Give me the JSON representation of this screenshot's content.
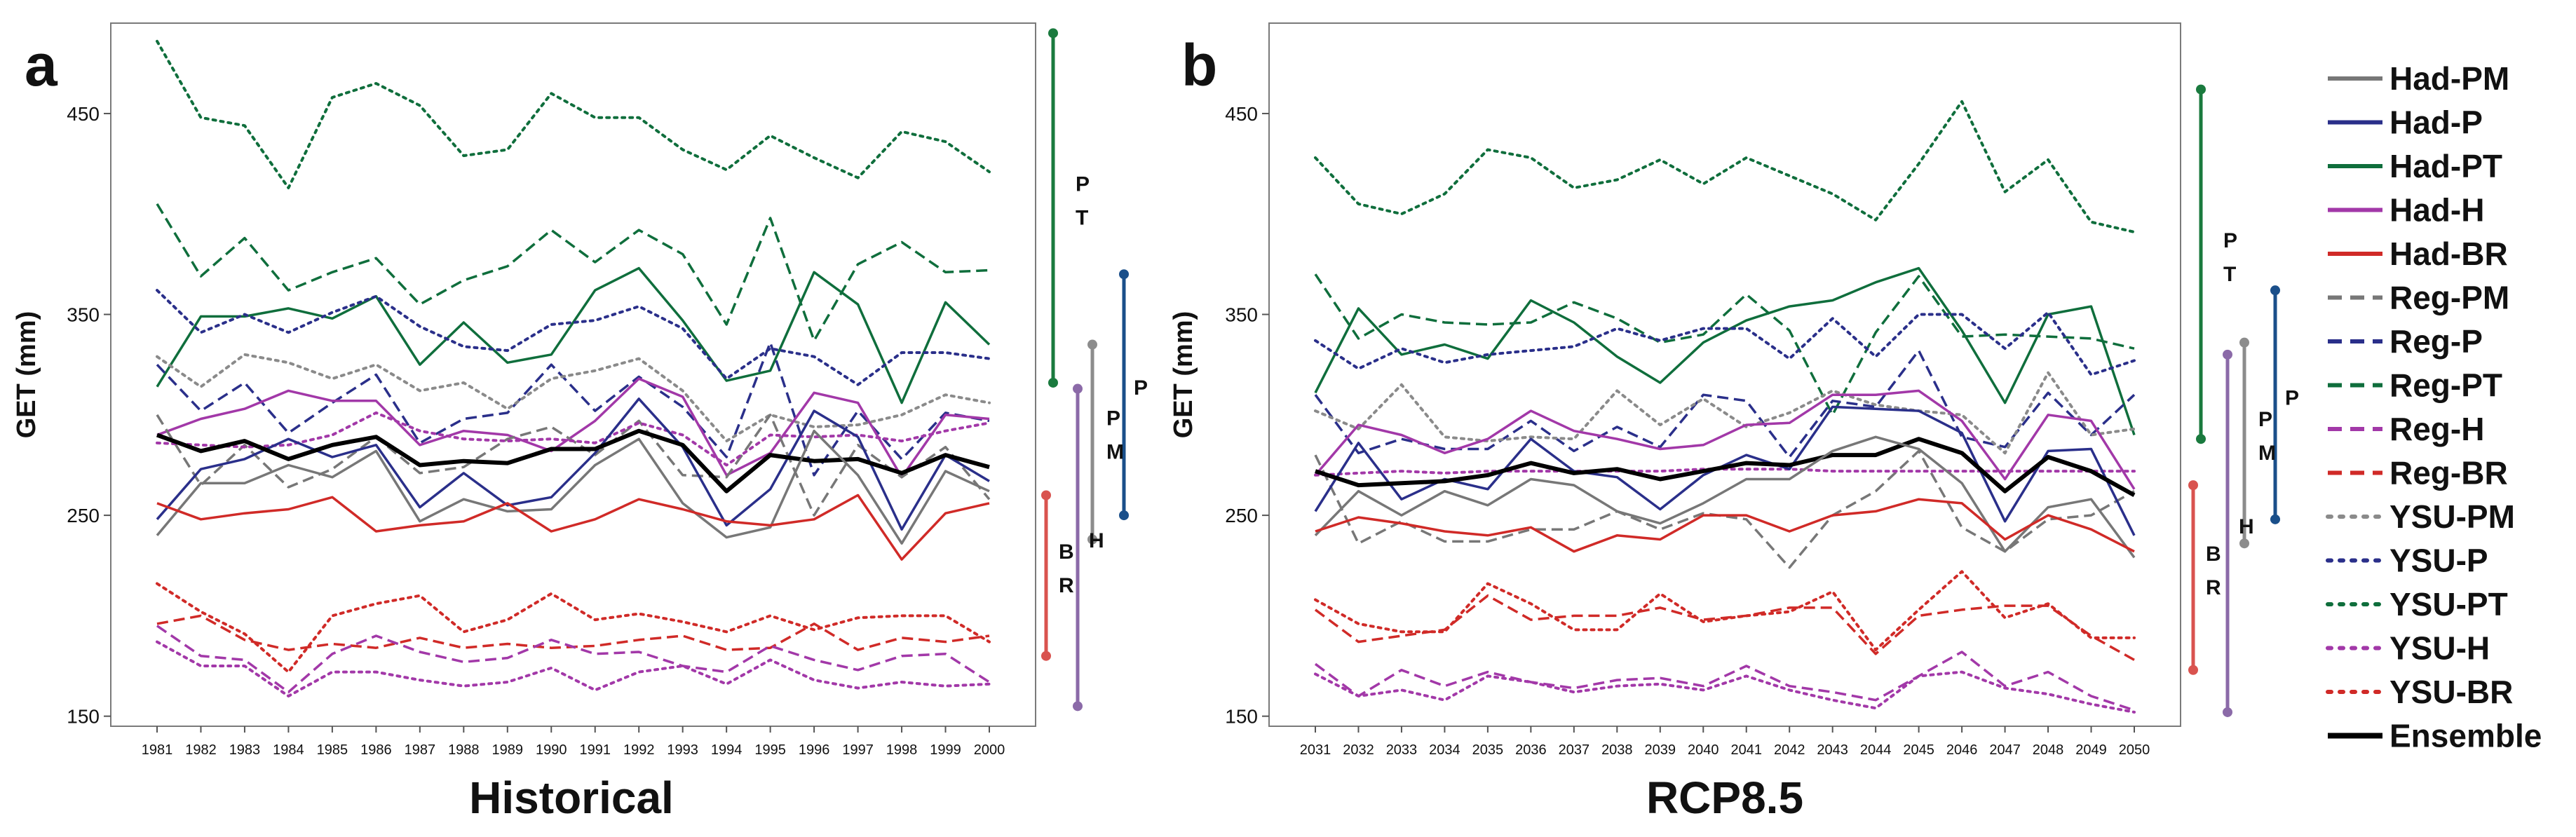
{
  "colors": {
    "Had-PM": "#777777",
    "Had-P": "#2a2f8a",
    "Had-PT": "#0f6e3c",
    "Had-H": "#a238a8",
    "Had-BR": "#d02a27",
    "Reg-PM": "#777777",
    "Reg-P": "#2a2f8a",
    "Reg-PT": "#0f6e3c",
    "Reg-H": "#a238a8",
    "Reg-BR": "#d02a27",
    "YSU-PM": "#8a8a8a",
    "YSU-P": "#2a2f8a",
    "YSU-PT": "#0f6e3c",
    "YSU-H": "#a238a8",
    "YSU-BR": "#d02a27",
    "Ensemble": "#000000",
    "bar_PT": "#1a7a3e",
    "bar_P": "#1a4f8a",
    "bar_PM": "#8c8c8c",
    "bar_H": "#8b6aa8",
    "bar_BR": "#d9534f"
  },
  "legend": {
    "entries": [
      {
        "name": "Had-PM",
        "style": "solid"
      },
      {
        "name": "Had-P",
        "style": "solid"
      },
      {
        "name": "Had-PT",
        "style": "solid"
      },
      {
        "name": "Had-H",
        "style": "solid"
      },
      {
        "name": "Had-BR",
        "style": "solid"
      },
      {
        "name": "Reg-PM",
        "style": "dashed"
      },
      {
        "name": "Reg-P",
        "style": "dashed"
      },
      {
        "name": "Reg-PT",
        "style": "dashed"
      },
      {
        "name": "Reg-H",
        "style": "dashed"
      },
      {
        "name": "Reg-BR",
        "style": "dashed"
      },
      {
        "name": "YSU-PM",
        "style": "dotted"
      },
      {
        "name": "YSU-P",
        "style": "dotted"
      },
      {
        "name": "YSU-PT",
        "style": "dotted"
      },
      {
        "name": "YSU-H",
        "style": "dotted"
      },
      {
        "name": "YSU-BR",
        "style": "dotted"
      },
      {
        "name": "Ensemble",
        "style": "solid-thick"
      }
    ]
  },
  "chart_data": [
    {
      "type": "line",
      "panel_label": "a",
      "title": "Historical",
      "xlabel": "",
      "ylabel": "GET (mm)",
      "ylim": [
        145,
        495
      ],
      "yticks": [
        150,
        250,
        350,
        450
      ],
      "categories": [
        "1981",
        "1982",
        "1983",
        "1984",
        "1985",
        "1986",
        "1987",
        "1988",
        "1989",
        "1990",
        "1991",
        "1992",
        "1993",
        "1994",
        "1995",
        "1996",
        "1997",
        "1998",
        "1999",
        "2000"
      ],
      "series": [
        {
          "name": "YSU-PT",
          "values": [
            486,
            448,
            444,
            413,
            458,
            465,
            454,
            429,
            432,
            460,
            448,
            448,
            432,
            422,
            439,
            428,
            418,
            441,
            436,
            421
          ]
        },
        {
          "name": "Reg-PT",
          "values": [
            405,
            369,
            388,
            362,
            371,
            378,
            355,
            367,
            374,
            392,
            376,
            392,
            380,
            345,
            398,
            337,
            375,
            386,
            371,
            372
          ]
        },
        {
          "name": "Had-PT",
          "values": [
            314,
            349,
            349,
            353,
            348,
            359,
            325,
            346,
            326,
            330,
            362,
            373,
            347,
            317,
            322,
            371,
            355,
            306,
            356,
            335
          ]
        },
        {
          "name": "YSU-P",
          "values": [
            362,
            341,
            350,
            341,
            351,
            359,
            344,
            334,
            332,
            345,
            347,
            354,
            343,
            318,
            333,
            329,
            315,
            331,
            331,
            328
          ]
        },
        {
          "name": "Reg-P",
          "values": [
            325,
            302,
            316,
            291,
            306,
            320,
            286,
            298,
            301,
            325,
            302,
            319,
            304,
            279,
            336,
            270,
            302,
            278,
            301,
            297
          ]
        },
        {
          "name": "YSU-PM",
          "values": [
            329,
            314,
            330,
            326,
            318,
            325,
            312,
            316,
            303,
            318,
            322,
            328,
            312,
            287,
            300,
            294,
            295,
            300,
            310,
            306
          ]
        },
        {
          "name": "Had-H",
          "values": [
            290,
            298,
            303,
            312,
            307,
            307,
            285,
            292,
            290,
            282,
            297,
            318,
            309,
            270,
            281,
            311,
            306,
            269,
            300,
            298
          ]
        },
        {
          "name": "Reg-PM",
          "values": [
            300,
            265,
            285,
            264,
            273,
            289,
            271,
            274,
            288,
            294,
            280,
            297,
            270,
            269,
            300,
            250,
            285,
            269,
            284,
            258
          ]
        },
        {
          "name": "YSU-H",
          "values": [
            286,
            285,
            284,
            285,
            290,
            301,
            292,
            288,
            287,
            288,
            286,
            296,
            290,
            275,
            290,
            289,
            290,
            287,
            292,
            296
          ]
        },
        {
          "name": "Had-P",
          "values": [
            248,
            273,
            278,
            288,
            279,
            285,
            254,
            271,
            255,
            259,
            281,
            308,
            284,
            245,
            263,
            302,
            289,
            243,
            280,
            267
          ]
        },
        {
          "name": "Ensemble",
          "values": [
            290,
            282,
            287,
            278,
            285,
            289,
            275,
            277,
            276,
            283,
            283,
            292,
            285,
            262,
            280,
            277,
            278,
            271,
            280,
            274
          ]
        },
        {
          "name": "Had-PM",
          "values": [
            240,
            266,
            266,
            275,
            269,
            282,
            247,
            258,
            252,
            253,
            275,
            288,
            256,
            239,
            244,
            292,
            270,
            236,
            272,
            262
          ]
        },
        {
          "name": "Had-BR",
          "values": [
            256,
            248,
            251,
            253,
            259,
            242,
            245,
            247,
            256,
            242,
            248,
            258,
            253,
            247,
            245,
            248,
            260,
            228,
            251,
            256
          ]
        },
        {
          "name": "YSU-BR",
          "values": [
            216,
            202,
            191,
            172,
            200,
            206,
            210,
            192,
            198,
            211,
            198,
            201,
            197,
            192,
            200,
            193,
            199,
            200,
            200,
            187
          ]
        },
        {
          "name": "Reg-BR",
          "values": [
            196,
            200,
            188,
            183,
            186,
            184,
            189,
            184,
            186,
            184,
            185,
            188,
            190,
            183,
            184,
            196,
            183,
            189,
            187,
            190
          ]
        },
        {
          "name": "Reg-H",
          "values": [
            195,
            180,
            178,
            162,
            181,
            190,
            182,
            177,
            179,
            188,
            181,
            182,
            175,
            172,
            185,
            178,
            173,
            180,
            181,
            167
          ]
        },
        {
          "name": "YSU-H",
          "values": [
            187,
            175,
            175,
            160,
            172,
            172,
            168,
            165,
            167,
            174,
            163,
            172,
            175,
            166,
            178,
            168,
            164,
            167,
            165,
            166
          ]
        }
      ],
      "range_bars": [
        {
          "label": "P\nT",
          "top": 490,
          "bottom": 316,
          "color": "bar_PT"
        },
        {
          "label": "P",
          "top": 370,
          "bottom": 250,
          "color": "bar_P"
        },
        {
          "label": "P\nM",
          "top": 335,
          "bottom": 238,
          "color": "bar_PM"
        },
        {
          "label": "H",
          "top": 313,
          "bottom": 155,
          "color": "bar_H"
        },
        {
          "label": "B\nR",
          "top": 260,
          "bottom": 180,
          "color": "bar_BR"
        }
      ]
    },
    {
      "type": "line",
      "panel_label": "b",
      "title": "RCP8.5",
      "xlabel": "",
      "ylabel": "GET (mm)",
      "ylim": [
        145,
        495
      ],
      "yticks": [
        150,
        250,
        350,
        450
      ],
      "categories": [
        "2031",
        "2032",
        "2033",
        "2034",
        "2035",
        "2036",
        "2037",
        "2038",
        "2039",
        "2040",
        "2041",
        "2042",
        "2043",
        "2044",
        "2045",
        "2046",
        "2047",
        "2048",
        "2049",
        "2050"
      ],
      "series": [
        {
          "name": "YSU-PT",
          "values": [
            428,
            405,
            400,
            410,
            432,
            428,
            413,
            417,
            427,
            415,
            428,
            419,
            410,
            397,
            425,
            456,
            411,
            427,
            396,
            391
          ]
        },
        {
          "name": "Reg-PT",
          "values": [
            370,
            338,
            350,
            346,
            345,
            346,
            356,
            348,
            336,
            340,
            360,
            342,
            300,
            341,
            369,
            339,
            340,
            339,
            338,
            333
          ]
        },
        {
          "name": "Had-PT",
          "values": [
            311,
            353,
            330,
            335,
            328,
            357,
            346,
            329,
            316,
            336,
            347,
            354,
            357,
            366,
            373,
            342,
            306,
            350,
            354,
            290
          ]
        },
        {
          "name": "YSU-P",
          "values": [
            337,
            323,
            333,
            326,
            330,
            332,
            334,
            343,
            337,
            343,
            343,
            328,
            348,
            329,
            350,
            350,
            333,
            351,
            320,
            327
          ]
        },
        {
          "name": "Reg-P",
          "values": [
            310,
            281,
            288,
            283,
            283,
            297,
            282,
            294,
            284,
            310,
            307,
            279,
            307,
            304,
            332,
            289,
            284,
            311,
            290,
            310
          ]
        },
        {
          "name": "YSU-PM",
          "values": [
            302,
            293,
            315,
            289,
            287,
            289,
            288,
            312,
            295,
            308,
            294,
            301,
            312,
            305,
            302,
            300,
            281,
            321,
            290,
            293
          ]
        },
        {
          "name": "Had-H",
          "values": [
            270,
            295,
            290,
            281,
            288,
            302,
            292,
            288,
            283,
            285,
            295,
            296,
            310,
            310,
            312,
            297,
            268,
            300,
            297,
            263
          ]
        },
        {
          "name": "Reg-PM",
          "values": [
            280,
            236,
            247,
            237,
            237,
            243,
            243,
            252,
            243,
            251,
            248,
            224,
            250,
            262,
            282,
            244,
            232,
            248,
            250,
            262
          ]
        },
        {
          "name": "YSU-H",
          "values": [
            270,
            271,
            272,
            271,
            272,
            272,
            272,
            272,
            272,
            273,
            273,
            273,
            272,
            272,
            272,
            272,
            272,
            272,
            272,
            272
          ]
        },
        {
          "name": "Had-P",
          "values": [
            252,
            286,
            258,
            268,
            263,
            288,
            272,
            269,
            253,
            270,
            280,
            273,
            304,
            303,
            302,
            291,
            247,
            282,
            283,
            240
          ]
        },
        {
          "name": "Ensemble",
          "values": [
            272,
            265,
            266,
            267,
            270,
            276,
            271,
            273,
            268,
            272,
            276,
            275,
            280,
            280,
            288,
            281,
            262,
            279,
            272,
            260
          ]
        },
        {
          "name": "Had-PM",
          "values": [
            240,
            262,
            250,
            262,
            255,
            268,
            265,
            252,
            246,
            256,
            268,
            268,
            282,
            289,
            283,
            266,
            232,
            254,
            258,
            229
          ]
        },
        {
          "name": "Had-BR",
          "values": [
            242,
            249,
            246,
            242,
            240,
            244,
            232,
            240,
            238,
            250,
            250,
            242,
            250,
            252,
            258,
            256,
            238,
            250,
            243,
            232
          ]
        },
        {
          "name": "YSU-BR",
          "values": [
            208,
            196,
            192,
            192,
            216,
            206,
            193,
            193,
            211,
            197,
            200,
            202,
            212,
            183,
            203,
            222,
            199,
            206,
            189,
            189
          ]
        },
        {
          "name": "Reg-BR",
          "values": [
            203,
            187,
            190,
            193,
            210,
            198,
            200,
            200,
            204,
            198,
            200,
            204,
            204,
            181,
            200,
            203,
            205,
            205,
            190,
            178
          ]
        },
        {
          "name": "Reg-H",
          "values": [
            176,
            160,
            173,
            165,
            172,
            167,
            164,
            168,
            169,
            165,
            175,
            165,
            162,
            158,
            170,
            182,
            165,
            172,
            160,
            153
          ]
        },
        {
          "name": "YSU-H",
          "values": [
            171,
            160,
            163,
            158,
            170,
            167,
            162,
            165,
            166,
            163,
            170,
            163,
            158,
            154,
            170,
            172,
            164,
            161,
            156,
            152
          ]
        }
      ],
      "range_bars": [
        {
          "label": "P\nT",
          "top": 462,
          "bottom": 288,
          "color": "bar_PT"
        },
        {
          "label": "P",
          "top": 362,
          "bottom": 248,
          "color": "bar_P"
        },
        {
          "label": "P\nM",
          "top": 336,
          "bottom": 236,
          "color": "bar_PM"
        },
        {
          "label": "H",
          "top": 330,
          "bottom": 152,
          "color": "bar_H"
        },
        {
          "label": "B\nR",
          "top": 265,
          "bottom": 173,
          "color": "bar_BR"
        }
      ]
    }
  ]
}
